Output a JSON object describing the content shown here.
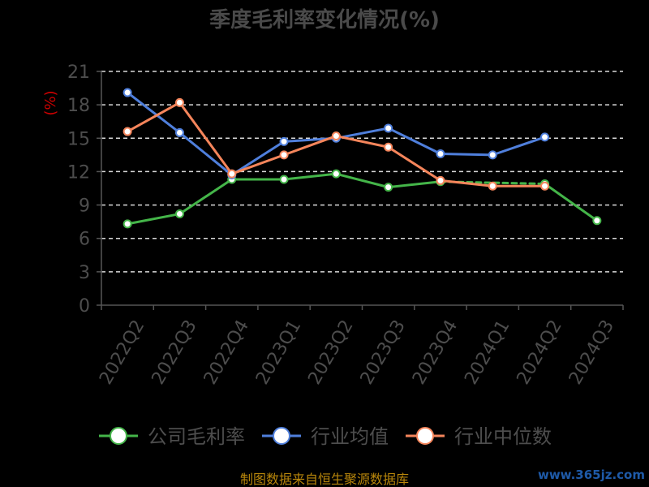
{
  "colors": {
    "background": "#000000",
    "company": "#44b549",
    "industry_avg": "#4f7fdc",
    "industry_median": "#f5855b",
    "grid": "#d9d9d9",
    "axis": "#555555"
  },
  "footer": {
    "source": "制图数据来自恒生聚源数据库",
    "watermark": "www.365jz.com"
  },
  "chart_data": {
    "type": "line",
    "title": "季度毛利率变化情况(%)",
    "xlabel": "",
    "ylabel": "(%)",
    "ylim": [
      0,
      21
    ],
    "yticks": [
      0,
      3,
      6,
      9,
      12,
      15,
      18,
      21
    ],
    "grid": true,
    "legend_position": "bottom",
    "categories": [
      "2022Q2",
      "2022Q3",
      "2022Q4",
      "2023Q1",
      "2023Q2",
      "2023Q3",
      "2023Q4",
      "2024Q1",
      "2024Q2",
      "2024Q3"
    ],
    "series": [
      {
        "name": "公司毛利率",
        "color": "#44b549",
        "values": [
          7.3,
          8.2,
          11.3,
          11.3,
          11.8,
          10.6,
          11.1,
          null,
          10.9,
          7.6
        ]
      },
      {
        "name": "行业均值",
        "color": "#4f7fdc",
        "values": [
          19.1,
          15.5,
          11.7,
          14.7,
          15.0,
          15.9,
          13.6,
          13.5,
          15.1,
          null
        ]
      },
      {
        "name": "行业中位数",
        "color": "#f5855b",
        "values": [
          15.6,
          18.2,
          11.8,
          13.5,
          15.2,
          14.2,
          11.2,
          10.7,
          10.7,
          null
        ]
      }
    ]
  }
}
